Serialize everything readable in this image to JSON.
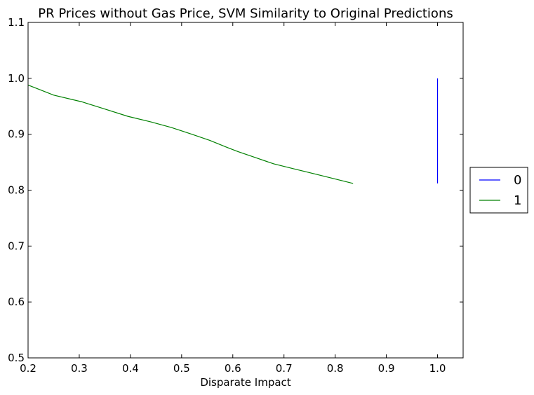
{
  "chart_data": {
    "type": "line",
    "title": "PR Prices without Gas Price, SVM Similarity to Original Predictions",
    "xlabel": "Disparate Impact",
    "ylabel": "",
    "xlim": [
      0.2,
      1.05
    ],
    "ylim": [
      0.5,
      1.1
    ],
    "x_ticks": [
      0.2,
      0.3,
      0.4,
      0.5,
      0.6,
      0.7,
      0.8,
      0.9,
      1.0
    ],
    "x_tick_labels": [
      "0.2",
      "0.3",
      "0.4",
      "0.5",
      "0.6",
      "0.7",
      "0.8",
      "0.9",
      "1.0"
    ],
    "y_ticks": [
      0.5,
      0.6,
      0.7,
      0.8,
      0.9,
      1.0,
      1.1
    ],
    "y_tick_labels": [
      "0.5",
      "0.6",
      "0.7",
      "0.8",
      "0.9",
      "1.0",
      "1.1"
    ],
    "grid": false,
    "legend_placement": "right, outside plot",
    "series": [
      {
        "name": "0",
        "color": "#0000ff",
        "x": [
          1.0,
          1.0
        ],
        "y": [
          0.812,
          1.0
        ]
      },
      {
        "name": "1",
        "color": "#008000",
        "x": [
          0.2,
          0.25,
          0.305,
          0.35,
          0.395,
          0.44,
          0.48,
          0.52,
          0.555,
          0.59,
          0.61,
          0.645,
          0.68,
          0.72,
          0.76,
          0.8,
          0.835
        ],
        "y": [
          0.988,
          0.97,
          0.958,
          0.945,
          0.932,
          0.922,
          0.912,
          0.9,
          0.889,
          0.876,
          0.869,
          0.858,
          0.847,
          0.838,
          0.829,
          0.82,
          0.812
        ]
      }
    ]
  }
}
